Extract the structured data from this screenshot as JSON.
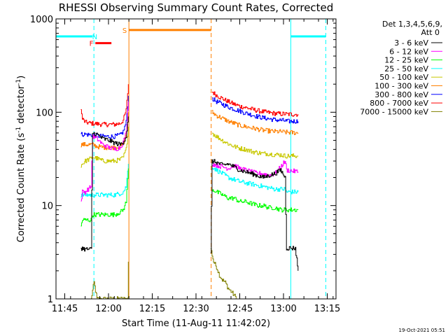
{
  "chart_data": {
    "type": "line",
    "title": "RHESSI Observing Summary Count Rates, Corrected",
    "xlabel": "Start Time (11-Aug-11 11:42:02)",
    "ylabel_main": "Corrected Count Rate (s",
    "ylabel_sup1": "-1",
    "ylabel_mid": " detector",
    "ylabel_sup2": "-1",
    "ylabel_end": ")",
    "yscale": "log",
    "ylim": [
      1,
      1000
    ],
    "xlim_minutes_after_11_42_02": [
      0,
      96
    ],
    "x_tick_labels": [
      "11:45",
      "12:00",
      "12:15",
      "12:30",
      "12:45",
      "13:00",
      "13:15"
    ],
    "x_tick_minutes": [
      3,
      18,
      33,
      48,
      63,
      78,
      93
    ],
    "y_tick_labels": [
      "1",
      "10",
      "100",
      "1000"
    ],
    "y_tick_values": [
      1,
      10,
      100,
      1000
    ],
    "grid": false,
    "legend_header": [
      "Det 1,3,4,5,6,9,",
      "Att 0"
    ],
    "legend_position": "right",
    "flag_labels": {
      "F": "F",
      "N": "N",
      "S": "S"
    },
    "timestamp": "19-Oct-2021 05:51",
    "series": [
      {
        "name": "3 - 6 keV",
        "color": "#000000",
        "seg1": [
          [
            8.5,
            3.5
          ],
          [
            9,
            3.5
          ],
          [
            10,
            3.4
          ],
          [
            12,
            3.4
          ],
          [
            12.5,
            60
          ],
          [
            14,
            58
          ],
          [
            16,
            52
          ],
          [
            18,
            50
          ],
          [
            20,
            47
          ],
          [
            22,
            45
          ],
          [
            23,
            48
          ],
          [
            24,
            55
          ],
          [
            24.8,
            90
          ]
        ],
        "seg2": [
          [
            53,
            3.0
          ],
          [
            53.5,
            30
          ],
          [
            55,
            29
          ],
          [
            57,
            27
          ],
          [
            59,
            28
          ],
          [
            61,
            26
          ],
          [
            63,
            24
          ],
          [
            65,
            23
          ],
          [
            67,
            22
          ],
          [
            69,
            21
          ],
          [
            71,
            20
          ],
          [
            73,
            21
          ],
          [
            75,
            22
          ],
          [
            77,
            24
          ],
          [
            78.5,
            20
          ],
          [
            79,
            3.5
          ],
          [
            82,
            3.5
          ],
          [
            83,
            2
          ]
        ]
      },
      {
        "name": "6 - 12 keV",
        "color": "#ff00ff",
        "seg1": [
          [
            8.5,
            11
          ],
          [
            9,
            14
          ],
          [
            10,
            14
          ],
          [
            11,
            15
          ],
          [
            12,
            16
          ],
          [
            12.5,
            55
          ],
          [
            14,
            52
          ],
          [
            16,
            45
          ],
          [
            18,
            42
          ],
          [
            20,
            40
          ],
          [
            22,
            42
          ],
          [
            23,
            48
          ],
          [
            24,
            60
          ],
          [
            24.8,
            130
          ]
        ],
        "seg2": [
          [
            53.5,
            28
          ],
          [
            55,
            27
          ],
          [
            57,
            26
          ],
          [
            59,
            25
          ],
          [
            61,
            27
          ],
          [
            63,
            25
          ],
          [
            65,
            24
          ],
          [
            67,
            23
          ],
          [
            69,
            22
          ],
          [
            71,
            22
          ],
          [
            73,
            21
          ],
          [
            75,
            22
          ],
          [
            77,
            26
          ],
          [
            78.5,
            30
          ],
          [
            79,
            24
          ],
          [
            83,
            23
          ]
        ]
      },
      {
        "name": "12 - 25 keV",
        "color": "#00ff00",
        "seg1": [
          [
            8.5,
            6
          ],
          [
            9,
            7
          ],
          [
            12,
            7
          ],
          [
            12.5,
            8
          ],
          [
            14,
            8
          ],
          [
            16,
            8
          ],
          [
            18,
            8
          ],
          [
            20,
            8
          ],
          [
            22,
            8.5
          ],
          [
            23,
            9
          ],
          [
            24,
            11
          ],
          [
            24.8,
            25
          ]
        ],
        "seg2": [
          [
            53.5,
            15
          ],
          [
            55,
            14
          ],
          [
            57,
            13
          ],
          [
            59,
            12
          ],
          [
            61,
            12
          ],
          [
            63,
            11
          ],
          [
            65,
            11
          ],
          [
            67,
            10.5
          ],
          [
            69,
            10
          ],
          [
            71,
            10
          ],
          [
            73,
            9.5
          ],
          [
            75,
            9.5
          ],
          [
            77,
            9
          ],
          [
            78.5,
            9
          ],
          [
            79,
            9
          ],
          [
            83,
            9
          ]
        ]
      },
      {
        "name": "25 - 50 keV",
        "color": "#00ffff",
        "seg1": [
          [
            8.5,
            13
          ],
          [
            10,
            13
          ],
          [
            12,
            13
          ],
          [
            12.5,
            13
          ],
          [
            14,
            13
          ],
          [
            16,
            13
          ],
          [
            18,
            13
          ],
          [
            20,
            13
          ],
          [
            22,
            13.5
          ],
          [
            23,
            14
          ],
          [
            24,
            16
          ],
          [
            24.8,
            28
          ]
        ],
        "seg2": [
          [
            53.5,
            26
          ],
          [
            55,
            24
          ],
          [
            57,
            22
          ],
          [
            59,
            20
          ],
          [
            61,
            19
          ],
          [
            63,
            18
          ],
          [
            65,
            17.5
          ],
          [
            67,
            17
          ],
          [
            69,
            16.5
          ],
          [
            71,
            16
          ],
          [
            73,
            15.5
          ],
          [
            75,
            15
          ],
          [
            77,
            15
          ],
          [
            78.5,
            15
          ],
          [
            79,
            14
          ],
          [
            83,
            14
          ]
        ]
      },
      {
        "name": "50 - 100 keV",
        "color": "#c8c800",
        "seg1": [
          [
            8.5,
            27
          ],
          [
            10,
            30
          ],
          [
            12,
            32
          ],
          [
            12.5,
            33
          ],
          [
            14,
            32
          ],
          [
            16,
            30
          ],
          [
            18,
            30
          ],
          [
            20,
            30
          ],
          [
            22,
            31
          ],
          [
            23,
            33
          ],
          [
            24,
            40
          ],
          [
            24.8,
            70
          ]
        ],
        "seg2": [
          [
            53.5,
            60
          ],
          [
            55,
            55
          ],
          [
            57,
            50
          ],
          [
            59,
            46
          ],
          [
            61,
            43
          ],
          [
            63,
            41
          ],
          [
            65,
            40
          ],
          [
            67,
            38
          ],
          [
            69,
            37
          ],
          [
            71,
            36
          ],
          [
            73,
            36
          ],
          [
            75,
            35
          ],
          [
            77,
            35
          ],
          [
            78.5,
            34
          ],
          [
            79,
            34
          ],
          [
            83,
            34
          ]
        ]
      },
      {
        "name": "100 - 300 keV",
        "color": "#ff8000",
        "seg1": [
          [
            8.5,
            45
          ],
          [
            10,
            45
          ],
          [
            12,
            45
          ],
          [
            12.5,
            45
          ],
          [
            14,
            43
          ],
          [
            16,
            42
          ],
          [
            18,
            42
          ],
          [
            20,
            42
          ],
          [
            22,
            43
          ],
          [
            23,
            46
          ],
          [
            24,
            58
          ],
          [
            24.8,
            100
          ]
        ],
        "seg2": [
          [
            53.5,
            100
          ],
          [
            55,
            92
          ],
          [
            57,
            86
          ],
          [
            59,
            80
          ],
          [
            61,
            76
          ],
          [
            63,
            72
          ],
          [
            65,
            70
          ],
          [
            67,
            68
          ],
          [
            69,
            66
          ],
          [
            71,
            64
          ],
          [
            73,
            63
          ],
          [
            75,
            62
          ],
          [
            77,
            62
          ],
          [
            78.5,
            61
          ],
          [
            79,
            61
          ],
          [
            83,
            60
          ]
        ]
      },
      {
        "name": "300 - 800 keV",
        "color": "#0000ff",
        "seg1": [
          [
            8.5,
            58
          ],
          [
            10,
            58
          ],
          [
            12,
            57
          ],
          [
            12.5,
            57
          ],
          [
            14,
            56
          ],
          [
            16,
            55
          ],
          [
            18,
            55
          ],
          [
            20,
            55
          ],
          [
            22,
            57
          ],
          [
            23,
            62
          ],
          [
            24,
            78
          ],
          [
            24.8,
            150
          ]
        ],
        "seg2": [
          [
            53.5,
            140
          ],
          [
            55,
            130
          ],
          [
            57,
            122
          ],
          [
            59,
            114
          ],
          [
            61,
            108
          ],
          [
            63,
            103
          ],
          [
            65,
            98
          ],
          [
            67,
            94
          ],
          [
            69,
            90
          ],
          [
            71,
            87
          ],
          [
            73,
            85
          ],
          [
            75,
            83
          ],
          [
            77,
            82
          ],
          [
            78.5,
            81
          ],
          [
            79,
            80
          ],
          [
            83,
            80
          ]
        ]
      },
      {
        "name": "800 - 7000 keV",
        "color": "#ff0000",
        "seg1": [
          [
            8.5,
            105
          ],
          [
            9,
            85
          ],
          [
            10,
            78
          ],
          [
            12,
            76
          ],
          [
            12.5,
            76
          ],
          [
            14,
            75
          ],
          [
            16,
            74
          ],
          [
            18,
            74
          ],
          [
            20,
            74
          ],
          [
            22,
            76
          ],
          [
            23,
            82
          ],
          [
            24,
            105
          ],
          [
            24.8,
            200
          ]
        ],
        "seg2": [
          [
            53.5,
            165
          ],
          [
            55,
            152
          ],
          [
            57,
            140
          ],
          [
            59,
            130
          ],
          [
            61,
            122
          ],
          [
            63,
            116
          ],
          [
            65,
            112
          ],
          [
            67,
            108
          ],
          [
            69,
            104
          ],
          [
            71,
            101
          ],
          [
            73,
            99
          ],
          [
            75,
            97
          ],
          [
            77,
            96
          ],
          [
            78.5,
            96
          ],
          [
            79,
            95
          ],
          [
            83,
            95
          ]
        ]
      },
      {
        "name": "7000 - 15000 keV",
        "color": "#808000",
        "seg1": [
          [
            12,
            1.0
          ],
          [
            13,
            1.5
          ],
          [
            14,
            1.0
          ],
          [
            24.5,
            1.0
          ],
          [
            24.8,
            2.5
          ]
        ],
        "seg2": [
          [
            53,
            3.5
          ],
          [
            54,
            2.5
          ],
          [
            55,
            2.2
          ],
          [
            56,
            1.8
          ],
          [
            57,
            1.6
          ],
          [
            58,
            1.5
          ],
          [
            59,
            1.3
          ],
          [
            60,
            1.2
          ],
          [
            61,
            1.1
          ],
          [
            62,
            1.0
          ]
        ]
      }
    ],
    "vertical_lines": [
      {
        "color": "#00ffff",
        "style": "solid",
        "minute": 0
      },
      {
        "color": "#00ffff",
        "style": "dashed",
        "minute": 13
      },
      {
        "color": "#ff8000",
        "style": "solid",
        "minute": 25
      },
      {
        "color": "#ff8000",
        "style": "dashed",
        "minute": 53.2
      },
      {
        "color": "#00ffff",
        "style": "solid",
        "minute": 80.5
      },
      {
        "color": "#00ffff",
        "style": "dashed",
        "minute": 92.5
      }
    ],
    "flag_bars": [
      {
        "label": "F",
        "color": "#ff0000",
        "start": 13.5,
        "end": 19,
        "level": 550
      },
      {
        "label": "N",
        "color": "#00ffff",
        "start": 0,
        "end": 12.5,
        "level": 650
      },
      {
        "label": "S",
        "color": "#ff8000",
        "start": 25,
        "end": 53.2,
        "level": 760
      },
      {
        "label": "N",
        "color": "#00ffff",
        "start": 80.5,
        "end": 92.5,
        "level": 650
      }
    ]
  }
}
